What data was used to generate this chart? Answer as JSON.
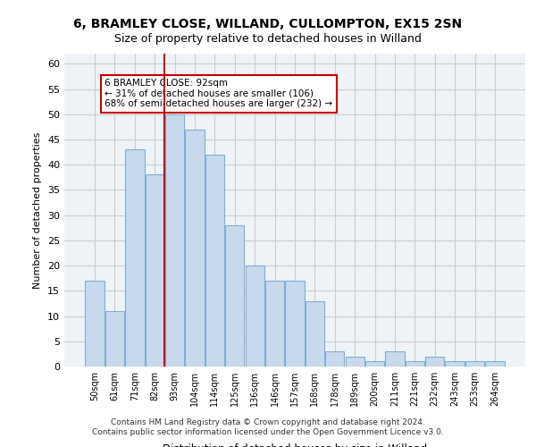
{
  "title_line1": "6, BRAMLEY CLOSE, WILLAND, CULLOMPTON, EX15 2SN",
  "title_line2": "Size of property relative to detached houses in Willand",
  "xlabel": "Distribution of detached houses by size in Willand",
  "ylabel": "Number of detached properties",
  "bin_labels": [
    "50sqm",
    "61sqm",
    "71sqm",
    "82sqm",
    "93sqm",
    "104sqm",
    "114sqm",
    "125sqm",
    "136sqm",
    "146sqm",
    "157sqm",
    "168sqm",
    "178sqm",
    "189sqm",
    "200sqm",
    "211sqm",
    "221sqm",
    "232sqm",
    "243sqm",
    "253sqm",
    "264sqm"
  ],
  "bar_heights": [
    17,
    11,
    43,
    38,
    50,
    47,
    42,
    28,
    20,
    17,
    17,
    13,
    3,
    2,
    1,
    3,
    1,
    2,
    1,
    1,
    1
  ],
  "bar_color": "#c9d9ed",
  "bar_edge_color": "#7bafd4",
  "vline_x": 4,
  "vline_color": "#cc0000",
  "annotation_text": "6 BRAMLEY CLOSE: 92sqm\n← 31% of detached houses are smaller (106)\n68% of semi-detached houses are larger (232) →",
  "annotation_box_color": "#ffffff",
  "annotation_box_edge": "#cc0000",
  "ylim": [
    0,
    62
  ],
  "yticks": [
    0,
    5,
    10,
    15,
    20,
    25,
    30,
    35,
    40,
    45,
    50,
    55,
    60
  ],
  "grid_color": "#cccccc",
  "bg_color": "#eef3f8",
  "footer_line1": "Contains HM Land Registry data © Crown copyright and database right 2024.",
  "footer_line2": "Contains public sector information licensed under the Open Government Licence v3.0."
}
